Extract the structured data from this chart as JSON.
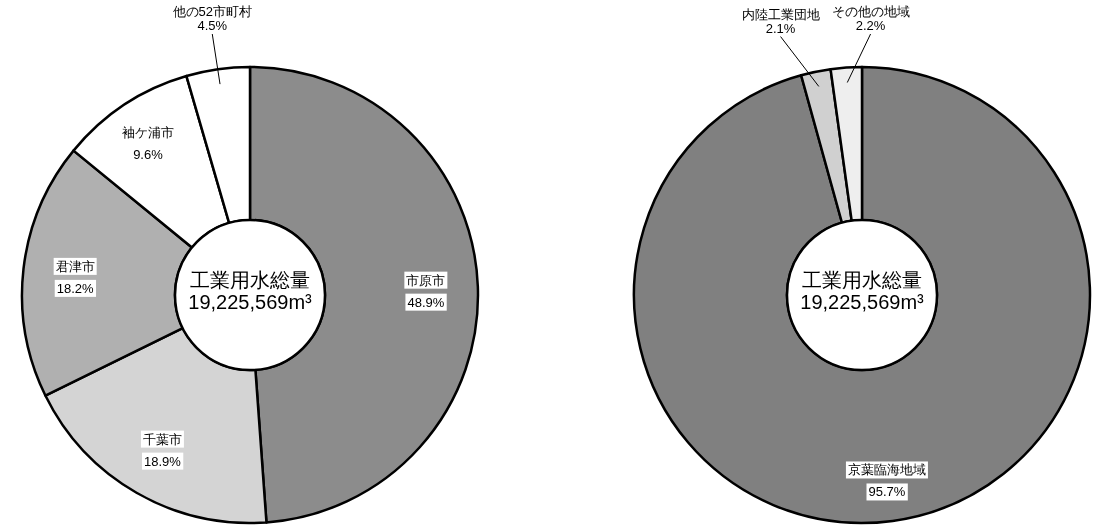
{
  "chart_data": [
    {
      "type": "donut",
      "categories": [
        "市原市",
        "千葉市",
        "君津市",
        "袖ケ浦市",
        "他の52市町村"
      ],
      "values": [
        48.9,
        18.9,
        18.2,
        9.6,
        4.5
      ],
      "value_labels": [
        "48.9%",
        "18.9%",
        "18.2%",
        "9.6%",
        "4.5%"
      ],
      "colors": [
        "#8c8c8c",
        "#d4d4d4",
        "#b0b0b0",
        "#ffffff",
        "#ffffff"
      ],
      "annotations": [
        "工業用水総量",
        "19,225,569m³"
      ]
    },
    {
      "type": "donut",
      "categories": [
        "京葉臨海地域",
        "内陸工業団地",
        "その他の地域"
      ],
      "values": [
        95.7,
        2.1,
        2.2
      ],
      "value_labels": [
        "95.7%",
        "2.1%",
        "2.2%"
      ],
      "colors": [
        "#808080",
        "#d0d0d0",
        "#eeeeee"
      ],
      "annotations": [
        "工業用水総量",
        "19,225,569m³"
      ]
    }
  ]
}
